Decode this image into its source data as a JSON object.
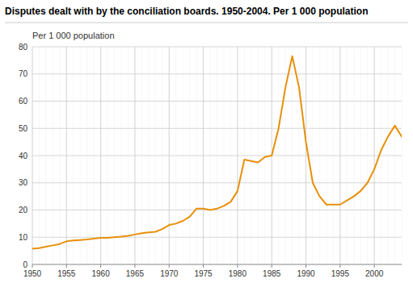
{
  "chart_data": {
    "type": "line",
    "title": "Disputes dealt with by the conciliation boards. 1950-2004. Per 1 000 population",
    "y_label": "Per 1 000 population",
    "color": "#E8900A",
    "grid": true,
    "xlim": [
      1950,
      2004
    ],
    "ylim": [
      0,
      80
    ],
    "xticks": [
      1950,
      1955,
      1960,
      1965,
      1970,
      1975,
      1980,
      1985,
      1990,
      1995,
      2000
    ],
    "yticks": [
      0,
      10,
      20,
      30,
      40,
      50,
      60,
      70,
      80
    ],
    "x": [
      1950,
      1951,
      1952,
      1953,
      1954,
      1955,
      1956,
      1957,
      1958,
      1959,
      1960,
      1961,
      1962,
      1963,
      1964,
      1965,
      1966,
      1967,
      1968,
      1969,
      1970,
      1971,
      1972,
      1973,
      1974,
      1975,
      1976,
      1977,
      1978,
      1979,
      1980,
      1981,
      1982,
      1983,
      1984,
      1985,
      1986,
      1987,
      1988,
      1989,
      1990,
      1991,
      1992,
      1993,
      1994,
      1995,
      1996,
      1997,
      1998,
      1999,
      2000,
      2001,
      2002,
      2003,
      2004
    ],
    "values": [
      5.8,
      6.0,
      6.5,
      7.0,
      7.5,
      8.5,
      8.8,
      9.0,
      9.2,
      9.5,
      9.8,
      9.8,
      10.0,
      10.2,
      10.5,
      11.0,
      11.5,
      11.8,
      12.0,
      13.0,
      14.5,
      15.0,
      16.0,
      17.5,
      20.5,
      20.5,
      20.0,
      20.5,
      21.5,
      23.0,
      27.0,
      38.5,
      38.0,
      37.5,
      39.5,
      40.0,
      50.0,
      65.0,
      76.5,
      65.0,
      45.0,
      30.0,
      25.0,
      22.0,
      22.0,
      22.0,
      23.5,
      25.0,
      27.0,
      30.0,
      35.0,
      42.0,
      47.0,
      51.0,
      47.0
    ]
  }
}
